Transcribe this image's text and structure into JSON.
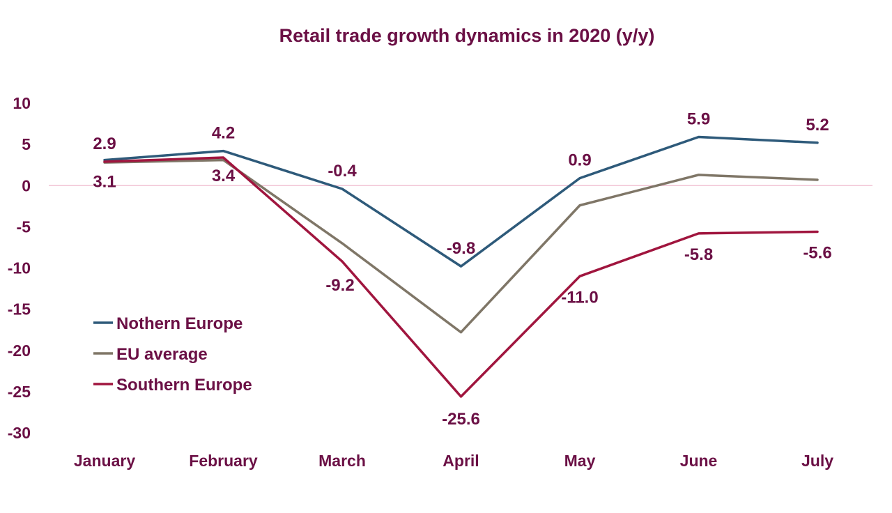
{
  "chart_data": {
    "type": "line",
    "title": "Retail trade growth dynamics in 2020 (y/y)",
    "xlabel": "",
    "ylabel": "",
    "categories": [
      "January",
      "February",
      "March",
      "April",
      "May",
      "June",
      "July"
    ],
    "ylim": [
      -30,
      10
    ],
    "yticks": [
      10,
      5,
      0,
      -5,
      -10,
      -15,
      -20,
      -25,
      -30
    ],
    "grid": false,
    "legend_position": "left-middle",
    "series": [
      {
        "name": "Nothern Europe",
        "color": "#2e5a7a",
        "values": [
          3.1,
          4.2,
          -0.4,
          -9.8,
          0.9,
          5.9,
          5.2
        ],
        "data_labels": [
          "",
          "4.2",
          "-0.4",
          "-9.8",
          "0.9",
          "5.9",
          "5.2"
        ]
      },
      {
        "name": "EU average",
        "color": "#7f7667",
        "values": [
          2.8,
          3.1,
          -7.0,
          -17.8,
          -2.4,
          1.3,
          0.7
        ],
        "data_labels": [
          "",
          "",
          "",
          "",
          "",
          "",
          ""
        ]
      },
      {
        "name": "Southern Europe",
        "color": "#a0153e",
        "values": [
          2.9,
          3.4,
          -9.2,
          -25.6,
          -11.0,
          -5.8,
          -5.6
        ],
        "data_labels": [
          "2.9",
          "3.4",
          "-9.2",
          "-25.6",
          "-11.0",
          "-5.8",
          "-5.6"
        ]
      }
    ],
    "first_point_label_below": "3.1",
    "zero_line_color": "#f2c6d6",
    "text_color": "#6b1045"
  }
}
